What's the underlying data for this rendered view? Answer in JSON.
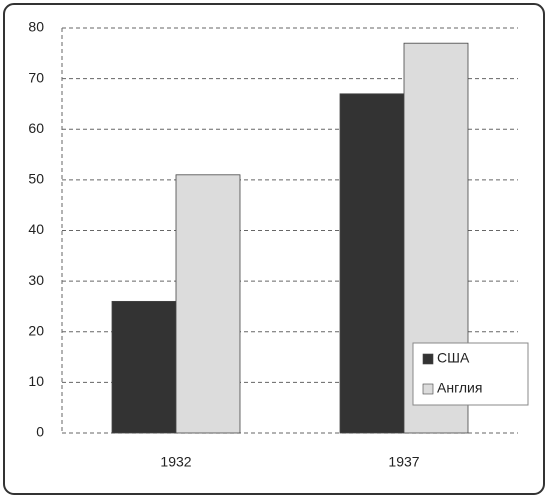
{
  "chart_data": {
    "type": "bar",
    "categories": [
      "1932",
      "1937"
    ],
    "series": [
      {
        "name": "США",
        "color": "#333333",
        "values": [
          26,
          67
        ]
      },
      {
        "name": "Англия",
        "color": "#dcdcdc",
        "values": [
          51,
          77
        ]
      }
    ],
    "ylim": [
      0,
      80
    ],
    "yticks": [
      0,
      10,
      20,
      30,
      40,
      50,
      60,
      70,
      80
    ],
    "grid": true,
    "legend": "bottom-right"
  }
}
